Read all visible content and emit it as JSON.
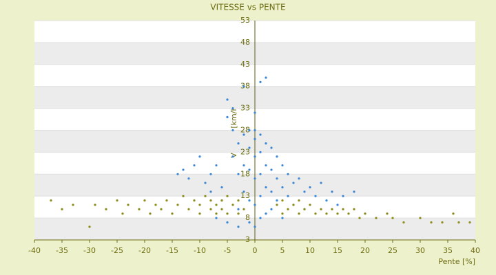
{
  "chart_data": {
    "type": "scatter",
    "title": "VITESSE vs PENTE",
    "x_label": "Pente [%]",
    "y_label": "Vitesse [km/h]",
    "xlim": [
      -40,
      40
    ],
    "xticks": [
      -40,
      -35,
      -30,
      -25,
      -20,
      -15,
      -10,
      -5,
      0,
      5,
      10,
      15,
      20,
      25,
      30,
      35,
      40
    ],
    "ylim": [
      3,
      53
    ],
    "yticks": [
      3,
      8,
      13,
      18,
      23,
      28,
      33,
      38,
      43,
      48,
      53
    ],
    "grid": true,
    "series": [
      {
        "color": "#3a87d6",
        "x": [
          -14,
          -13,
          -12,
          -11,
          -10,
          -9,
          -8,
          -8,
          -7,
          -6,
          -6,
          -5,
          -5,
          -4,
          -4,
          -4,
          -3,
          -3,
          -3,
          -2,
          -2,
          -2,
          -2,
          -1,
          -1,
          -1,
          -1,
          -1,
          0,
          0,
          0,
          0,
          0,
          0,
          0,
          1,
          1,
          1,
          1,
          1,
          1,
          2,
          2,
          2,
          2,
          2,
          3,
          3,
          3,
          3,
          4,
          4,
          4,
          5,
          5,
          6,
          6,
          7,
          8,
          9,
          10,
          11,
          12,
          13,
          14,
          15,
          16,
          18,
          -7,
          -5,
          -3,
          5,
          7,
          9
        ],
        "values": [
          18,
          19,
          17,
          20,
          22,
          16,
          18,
          14,
          20,
          15,
          12,
          35,
          31,
          33,
          28,
          22,
          25,
          18,
          10,
          38,
          27,
          20,
          14,
          28,
          24,
          19,
          12,
          7,
          32,
          28,
          26,
          22,
          17,
          11,
          6,
          39,
          27,
          23,
          18,
          13,
          8,
          40,
          25,
          20,
          15,
          9,
          24,
          19,
          14,
          10,
          22,
          17,
          12,
          20,
          15,
          18,
          13,
          16,
          17,
          14,
          15,
          13,
          16,
          12,
          14,
          11,
          13,
          14,
          8,
          7,
          6,
          8,
          11,
          10
        ]
      },
      {
        "color": "#8c8c14",
        "x": [
          -37,
          -35,
          -33,
          -30,
          -29,
          -27,
          -25,
          -24,
          -23,
          -21,
          -20,
          -19,
          -18,
          -17,
          -16,
          -15,
          -14,
          -13,
          -12,
          -11,
          -10,
          -10,
          -9,
          -8,
          -8,
          -7,
          -7,
          -6,
          -6,
          -5,
          -5,
          -4,
          -3,
          -3,
          -2,
          4,
          5,
          5,
          6,
          7,
          8,
          8,
          9,
          10,
          11,
          12,
          13,
          14,
          15,
          16,
          17,
          18,
          19,
          20,
          22,
          24,
          25,
          27,
          30,
          32,
          34,
          36,
          37,
          39
        ],
        "values": [
          12,
          10,
          11,
          6,
          11,
          10,
          12,
          9,
          11,
          10,
          12,
          9,
          11,
          10,
          12,
          9,
          11,
          13,
          10,
          12,
          9,
          11,
          13,
          10,
          12,
          9,
          11,
          12,
          10,
          13,
          9,
          11,
          12,
          9,
          10,
          11,
          12,
          9,
          10,
          11,
          9,
          12,
          10,
          11,
          9,
          10,
          9,
          10,
          9,
          10,
          9,
          10,
          8,
          9,
          8,
          9,
          8,
          7,
          8,
          7,
          7,
          9,
          7,
          7
        ]
      }
    ]
  }
}
